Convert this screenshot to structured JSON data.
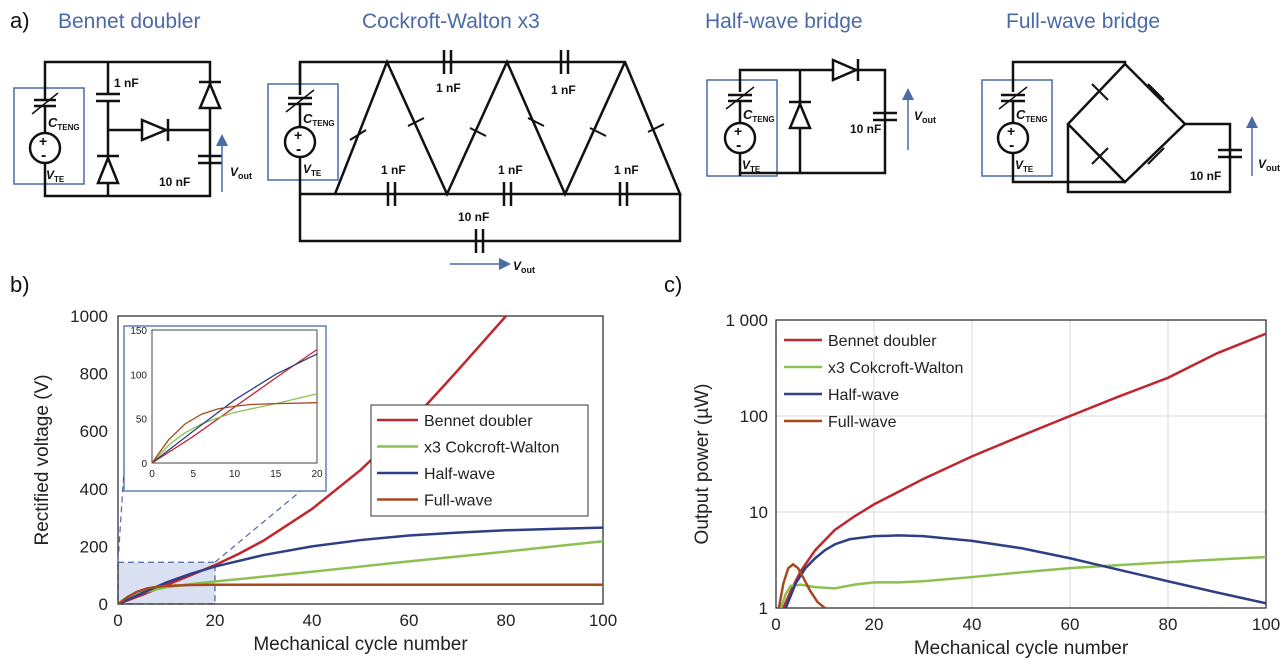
{
  "panel_labels": {
    "a": "a)",
    "b": "b)",
    "c": "c)"
  },
  "circuits": {
    "bennet": {
      "title": "Bennet doubler",
      "c_small": "1 nF",
      "c_out": "10 nF",
      "teng_c": "C",
      "teng_c_sub": "TENG",
      "teng_v": "V",
      "teng_v_sub": "TE",
      "vout": "V",
      "vout_sub": "out"
    },
    "cw": {
      "title": "Cockroft-Walton x3",
      "c_labels": [
        "1 nF",
        "1 nF",
        "1 nF",
        "1 nF",
        "1 nF"
      ],
      "c_out": "10 nF",
      "teng_c": "C",
      "teng_c_sub": "TENG",
      "teng_v": "V",
      "teng_v_sub": "TE",
      "vout": "V",
      "vout_sub": "out"
    },
    "half": {
      "title": "Half-wave bridge",
      "c_out": "10 nF",
      "teng_c": "C",
      "teng_c_sub": "TENG",
      "teng_v": "V",
      "teng_v_sub": "TE",
      "vout": "V",
      "vout_sub": "out"
    },
    "full": {
      "title": "Full-wave bridge",
      "c_out": "10 nF",
      "teng_c": "C",
      "teng_c_sub": "TENG",
      "teng_v": "V",
      "teng_v_sub": "TE",
      "vout": "V",
      "vout_sub": "out"
    }
  },
  "chart_data": [
    {
      "type": "line",
      "panel": "b",
      "xlabel": "Mechanical cycle number",
      "ylabel": "Rectified voltage (V)",
      "xlim": [
        0,
        100
      ],
      "ylim": [
        0,
        1000
      ],
      "xticks": [
        0,
        20,
        40,
        60,
        80,
        100
      ],
      "yticks": [
        0,
        200,
        400,
        600,
        800,
        1000
      ],
      "grid": "none",
      "legend": "right-middle",
      "series": [
        {
          "name": "Bennet doubler",
          "color": "#c0262d",
          "x": [
            0,
            5,
            10,
            15,
            20,
            25,
            30,
            40,
            50,
            60,
            70,
            80,
            90,
            100
          ],
          "y": [
            0,
            32,
            66,
            100,
            135,
            175,
            220,
            330,
            465,
            625,
            810,
            1000,
            null,
            null
          ]
        },
        {
          "name": "x3 Cokcroft-Walton",
          "color": "#8cc152",
          "x": [
            0,
            5,
            10,
            15,
            20,
            30,
            40,
            50,
            60,
            70,
            80,
            90,
            100
          ],
          "y": [
            0,
            40,
            58,
            69,
            78,
            95,
            112,
            130,
            148,
            165,
            182,
            200,
            218
          ]
        },
        {
          "name": "Half-wave",
          "color": "#2e3f86",
          "x": [
            0,
            5,
            10,
            15,
            20,
            30,
            40,
            50,
            60,
            70,
            80,
            90,
            100
          ],
          "y": [
            0,
            38,
            75,
            105,
            130,
            170,
            200,
            222,
            238,
            248,
            256,
            261,
            265
          ]
        },
        {
          "name": "Full-wave",
          "color": "#a54a1c",
          "x": [
            0,
            2,
            4,
            6,
            8,
            10,
            15,
            20,
            40,
            60,
            80,
            100
          ],
          "y": [
            0,
            25,
            43,
            54,
            60,
            63,
            66,
            67,
            67,
            67,
            67,
            67
          ]
        }
      ],
      "inset": {
        "xlim": [
          0,
          20
        ],
        "ylim": [
          0,
          150
        ],
        "xticks": [
          0,
          5,
          10,
          15,
          20
        ],
        "yticks": [
          0,
          50,
          100,
          150
        ],
        "series": [
          {
            "color": "#c0262d",
            "x": [
              0,
              5,
              10,
              15,
              20
            ],
            "y": [
              0,
              30,
              63,
              96,
              128
            ]
          },
          {
            "color": "#8cc152",
            "x": [
              0,
              2,
              4,
              6,
              8,
              10,
              12,
              15,
              20
            ],
            "y": [
              0,
              20,
              34,
              44,
              51,
              57,
              61,
              67,
              78
            ]
          },
          {
            "color": "#2e3f86",
            "x": [
              0,
              5,
              10,
              15,
              20
            ],
            "y": [
              0,
              36,
              71,
              100,
              123
            ]
          },
          {
            "color": "#a54a1c",
            "x": [
              0,
              2,
              4,
              6,
              8,
              10,
              12,
              15,
              20
            ],
            "y": [
              0,
              26,
              44,
              55,
              61,
              64,
              66,
              67,
              68
            ]
          }
        ]
      }
    },
    {
      "type": "line",
      "panel": "c",
      "xlabel": "Mechanical cycle number",
      "ylabel": "Output power (µW)",
      "xlim": [
        0,
        100
      ],
      "ylim": [
        1,
        1000
      ],
      "yscale": "log",
      "xticks": [
        0,
        20,
        40,
        60,
        80,
        100
      ],
      "yticks": [
        1,
        10,
        100,
        1000
      ],
      "ytick_labels": [
        "1",
        "10",
        "100",
        "1 000"
      ],
      "grid": "on",
      "legend": "top-left",
      "series": [
        {
          "name": "Bennet doubler",
          "color": "#c0262d",
          "x": [
            1.5,
            3,
            5,
            8,
            12,
            16,
            20,
            30,
            40,
            50,
            60,
            70,
            80,
            90,
            100
          ],
          "y": [
            1,
            1.5,
            2.4,
            4,
            6.5,
            9,
            12,
            22,
            38,
            62,
            100,
            160,
            250,
            450,
            720
          ]
        },
        {
          "name": "x3 Cokcroft-Walton",
          "color": "#8cc152",
          "x": [
            1,
            2,
            3,
            5,
            8,
            12,
            16,
            20,
            25,
            30,
            40,
            50,
            60,
            70,
            80,
            90,
            100
          ],
          "y": [
            1,
            1.4,
            1.7,
            1.75,
            1.65,
            1.6,
            1.75,
            1.85,
            1.85,
            1.9,
            2.1,
            2.35,
            2.6,
            2.8,
            3.0,
            3.2,
            3.4
          ]
        },
        {
          "name": "Half-wave",
          "color": "#2e3f86",
          "x": [
            2,
            4,
            6,
            8,
            10,
            12,
            15,
            20,
            25,
            30,
            40,
            50,
            60,
            70,
            80,
            90,
            100
          ],
          "y": [
            1,
            1.8,
            2.6,
            3.3,
            4,
            4.6,
            5.2,
            5.6,
            5.7,
            5.6,
            5,
            4.2,
            3.3,
            2.5,
            1.9,
            1.45,
            1.12
          ]
        },
        {
          "name": "Full-wave",
          "color": "#a54a1c",
          "x": [
            0.6,
            1.5,
            2.5,
            3.5,
            4.5,
            5.5,
            7,
            8.5,
            10
          ],
          "y": [
            1,
            1.8,
            2.6,
            2.85,
            2.6,
            2.1,
            1.5,
            1.15,
            1
          ]
        }
      ]
    }
  ]
}
